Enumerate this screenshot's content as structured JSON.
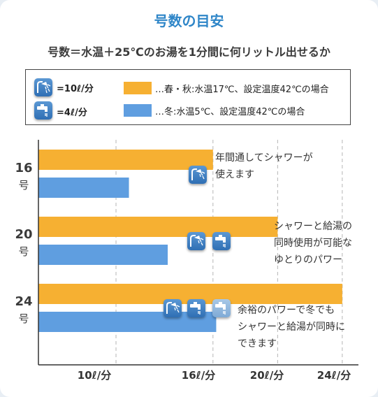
{
  "title": "号数の目安",
  "subtitle": "号数＝水温＋25℃のお湯を1分間に何リットル出せるか",
  "legend": {
    "shower_rate": "=10ℓ/分",
    "faucet_rate": "=4ℓ/分",
    "series_spring": "…春・秋:水温17℃、設定温度42℃の場合",
    "series_winter": "…冬:水温5℃、設定温度42℃の場合",
    "shower_icon": "shower-icon",
    "faucet_icon": "faucet-icon"
  },
  "chart_data": {
    "type": "bar",
    "orientation": "horizontal",
    "categories": [
      {
        "num": "16",
        "unit": "号"
      },
      {
        "num": "20",
        "unit": "号"
      },
      {
        "num": "24",
        "unit": "号"
      }
    ],
    "series": [
      {
        "name": "…春・秋:水温17℃、設定温度42℃の場合",
        "color": "#f6b032",
        "values": [
          16,
          20,
          24
        ]
      },
      {
        "name": "…冬:水温5℃、設定温度42℃の場合",
        "color": "#5f9ee0",
        "values": [
          10.8,
          13.2,
          16.2
        ]
      }
    ],
    "x_ticks": [
      {
        "value": 10,
        "label": "10ℓ/分"
      },
      {
        "value": 16,
        "label": "16ℓ/分"
      },
      {
        "value": 20,
        "label": "20ℓ/分"
      },
      {
        "value": 24,
        "label": "24ℓ/分"
      }
    ],
    "xlim": [
      5.2,
      25
    ],
    "grid": "vertical dashed at ticks",
    "annotations": [
      "年間通してシャワーが\n使えます",
      "シャワーと給湯の\n同時使用が可能な\nゆとりのパワー",
      "余裕のパワーで冬でも\nシャワーと給湯が同時に\nできます"
    ],
    "icon_groups": [
      {
        "category": "16",
        "icons": [
          "shower-icon"
        ]
      },
      {
        "category": "20",
        "icons": [
          "shower-icon",
          "faucet-icon"
        ]
      },
      {
        "category": "24",
        "icons": [
          "shower-icon",
          "faucet-icon",
          "faucet-icon-faded"
        ]
      }
    ]
  }
}
